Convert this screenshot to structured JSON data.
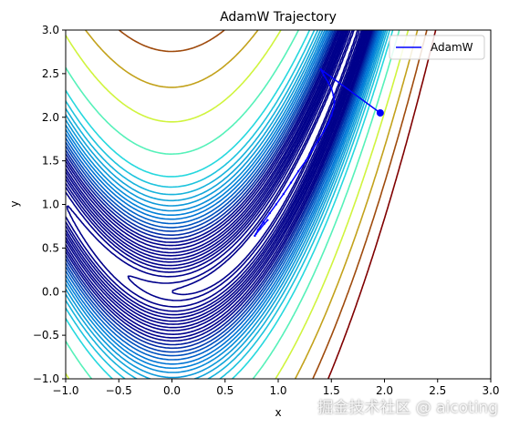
{
  "chart_data": {
    "type": "line",
    "title": "AdamW Trajectory",
    "xlabel": "x",
    "ylabel": "y",
    "xlim": [
      -1.0,
      3.0
    ],
    "ylim": [
      -1.0,
      3.0
    ],
    "xticks": [
      "−1.0",
      "−0.5",
      "0.0",
      "0.5",
      "1.0",
      "1.5",
      "2.0",
      "2.5",
      "3.0"
    ],
    "yticks": [
      "−1.0",
      "−0.5",
      "0.0",
      "0.5",
      "1.0",
      "1.5",
      "2.0",
      "2.5",
      "3.0"
    ],
    "grid": false,
    "legend": {
      "position": "top-right",
      "entries": [
        "AdamW"
      ]
    },
    "contour_function": "rosenbrock",
    "contour_levels": [
      1,
      2,
      4,
      6,
      8,
      10,
      12.5,
      15,
      18,
      21,
      25,
      29,
      33,
      38,
      43,
      49,
      55,
      62,
      70,
      78,
      87,
      98,
      110,
      125,
      145,
      175,
      250,
      380,
      550,
      760,
      1000
    ],
    "contour_colors": {
      "low": "#00008b",
      "mid": "#0078d7",
      "cyan": "#2ff0e0",
      "yellow": "#e4f42a",
      "high": "#800000"
    },
    "series": [
      {
        "name": "AdamW",
        "color": "#0000ff",
        "x": [
          1.96,
          1.4,
          1.43,
          1.47,
          1.5,
          1.52,
          1.53,
          1.52,
          1.5,
          1.47,
          1.43,
          1.38,
          1.32,
          1.26,
          1.19,
          1.12,
          1.05,
          0.98,
          0.92,
          0.86,
          0.81,
          0.78,
          0.79,
          0.83,
          0.87,
          0.9
        ],
        "y": [
          2.05,
          2.55,
          2.48,
          2.4,
          2.33,
          2.25,
          2.18,
          2.1,
          2.02,
          1.93,
          1.84,
          1.74,
          1.62,
          1.5,
          1.38,
          1.25,
          1.12,
          1.0,
          0.9,
          0.8,
          0.71,
          0.64,
          0.66,
          0.72,
          0.78,
          0.82
        ]
      }
    ]
  },
  "watermark": "掘金技术社区 @ aicoting"
}
